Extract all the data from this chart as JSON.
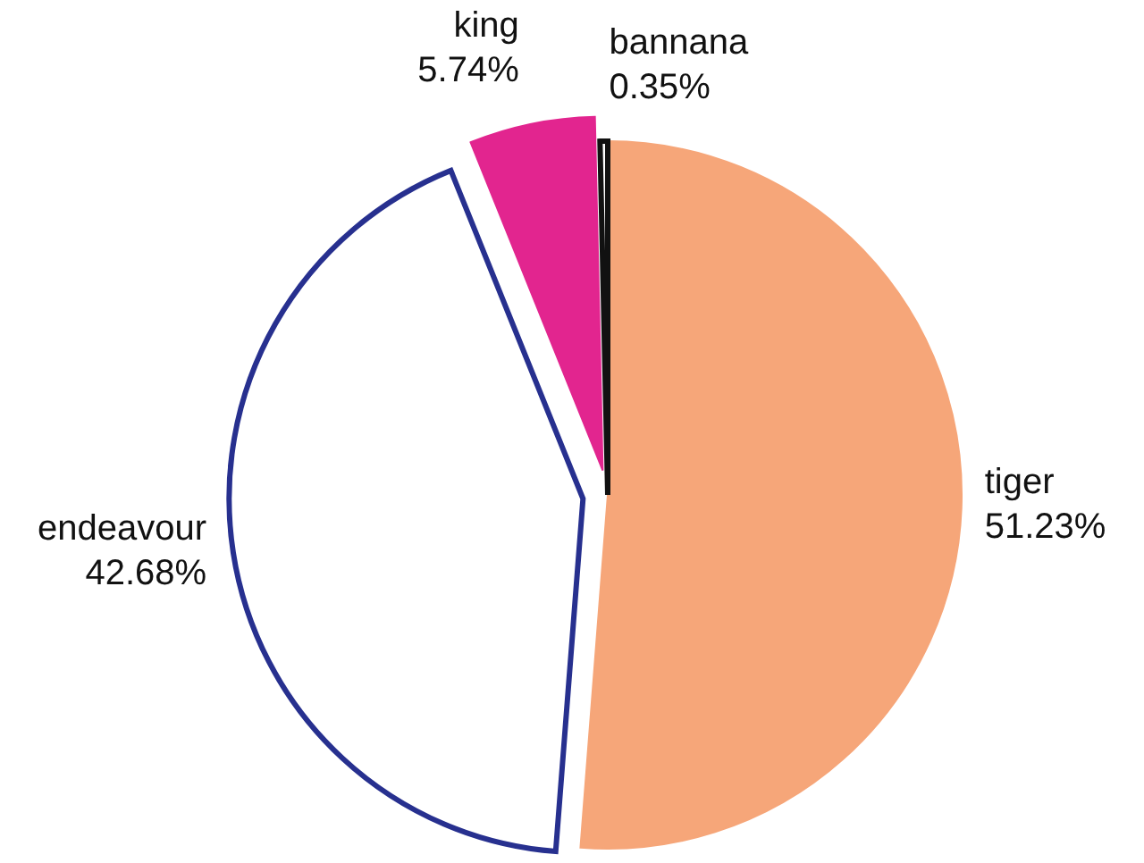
{
  "chart_data": {
    "type": "pie",
    "categories": [
      "tiger",
      "endeavour",
      "king",
      "bannana"
    ],
    "values": [
      51.23,
      42.68,
      5.74,
      0.35
    ],
    "value_labels": [
      "51.23%",
      "42.68%",
      "5.74%",
      "0.35%"
    ],
    "colors": [
      "#f6a679",
      "#ffffff",
      "#e2258f",
      "#ffffff"
    ]
  }
}
